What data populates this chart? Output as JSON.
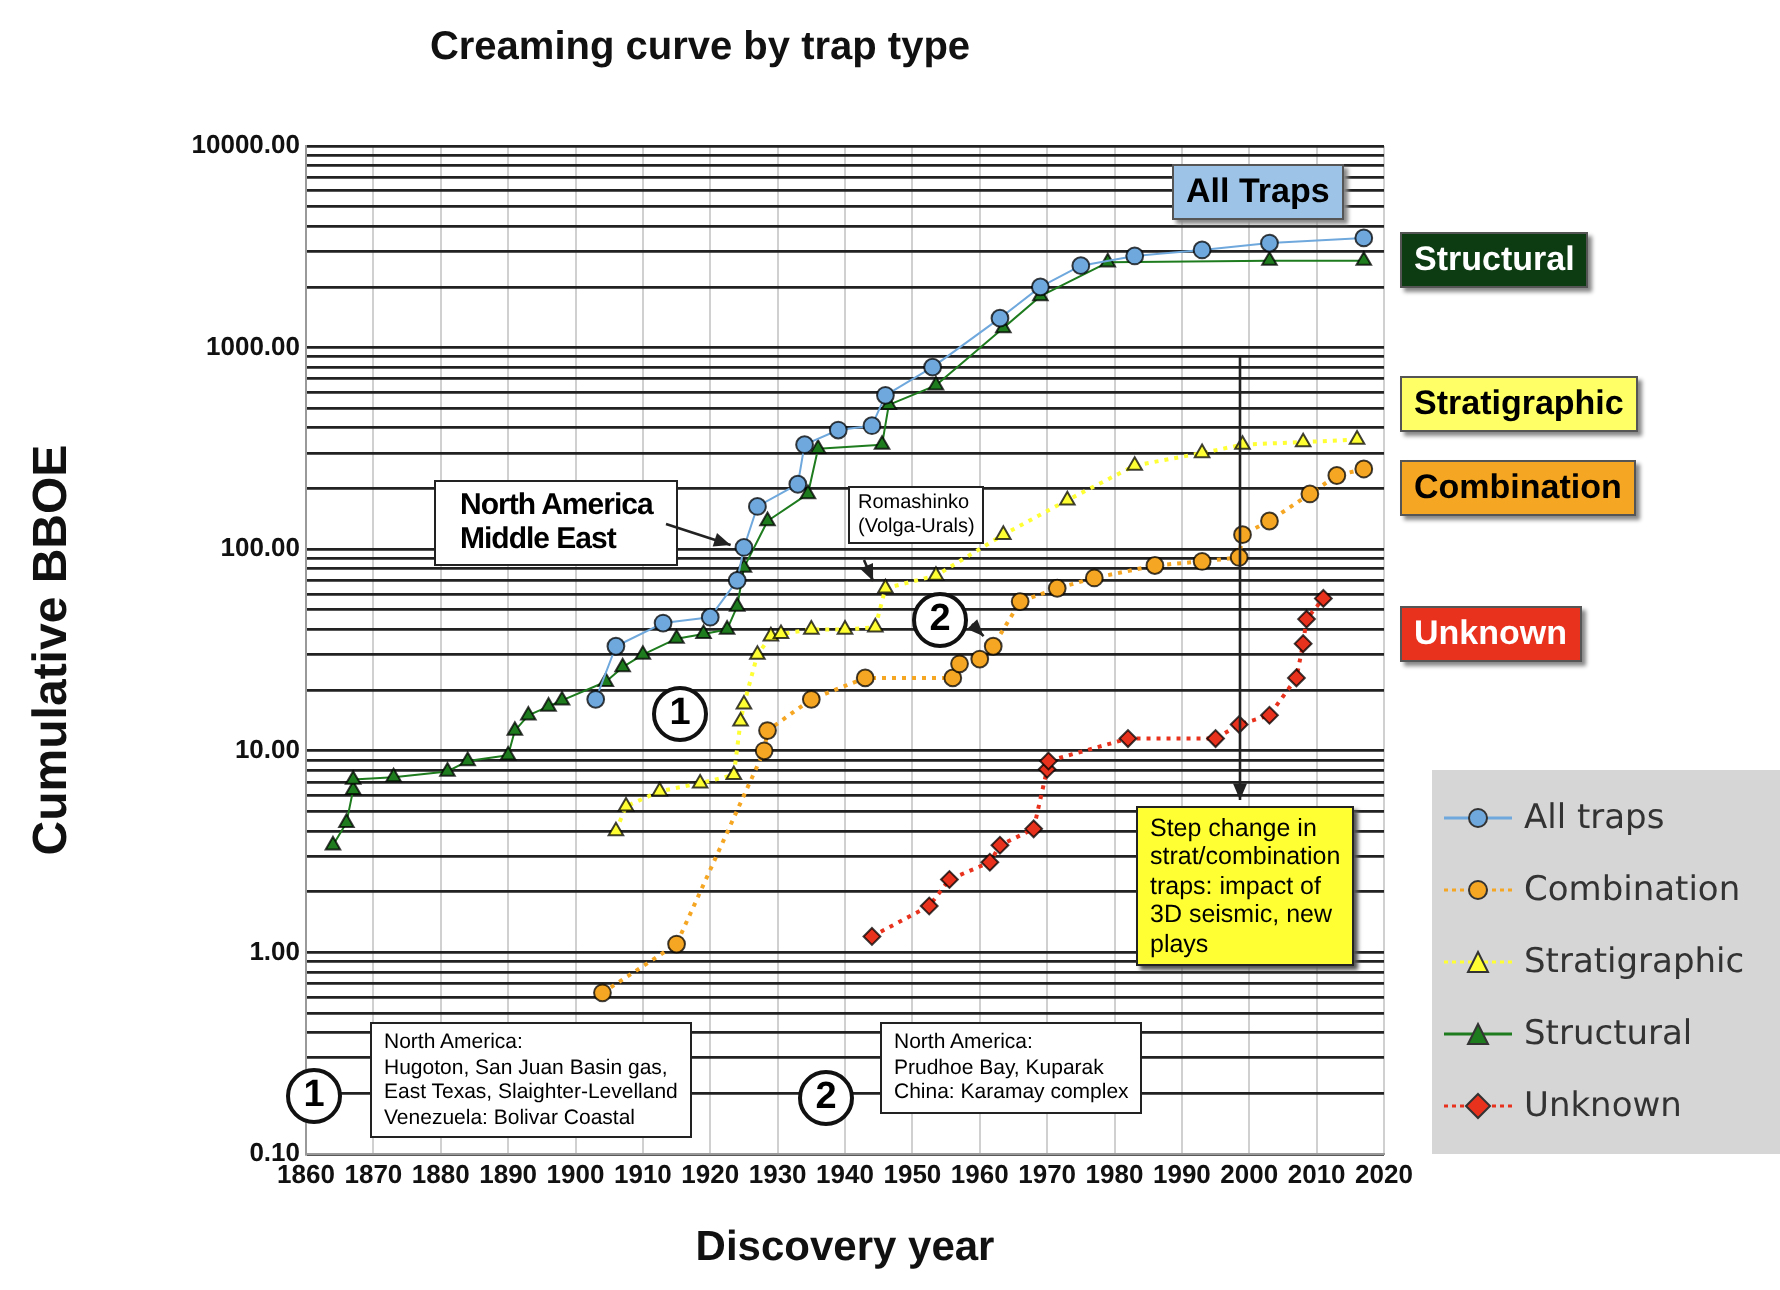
{
  "chart_data": {
    "type": "line",
    "title": "Creaming curve by trap type",
    "xlabel": "Discovery year",
    "ylabel": "Cumulative BBOE",
    "log": "y",
    "grid": true,
    "legend": "bottom right",
    "xlim": [
      1860,
      2020
    ],
    "xticks": [
      1860,
      1870,
      1880,
      1890,
      1900,
      1910,
      1920,
      1930,
      1940,
      1950,
      1960,
      1970,
      1980,
      1990,
      2000,
      2010,
      2020
    ],
    "ylim": [
      0.1,
      10000
    ],
    "yticks": [
      {
        "value": 0.1,
        "label": "0.10"
      },
      {
        "value": 0.2,
        "label": null
      },
      {
        "value": 0.3,
        "label": null
      },
      {
        "value": 0.4,
        "label": null
      },
      {
        "value": 0.5,
        "label": null
      },
      {
        "value": 0.6,
        "label": null
      },
      {
        "value": 0.7,
        "label": null
      },
      {
        "value": 0.8,
        "label": null
      },
      {
        "value": 0.9,
        "label": null
      },
      {
        "value": 1,
        "label": "1.00"
      },
      {
        "value": 2,
        "label": null
      },
      {
        "value": 3,
        "label": null
      },
      {
        "value": 4,
        "label": null
      },
      {
        "value": 5,
        "label": null
      },
      {
        "value": 6,
        "label": null
      },
      {
        "value": 7,
        "label": null
      },
      {
        "value": 8,
        "label": null
      },
      {
        "value": 9,
        "label": null
      },
      {
        "value": 10,
        "label": "10.00"
      },
      {
        "value": 20,
        "label": null
      },
      {
        "value": 30,
        "label": null
      },
      {
        "value": 40,
        "label": null
      },
      {
        "value": 50,
        "label": null
      },
      {
        "value": 60,
        "label": null
      },
      {
        "value": 70,
        "label": null
      },
      {
        "value": 80,
        "label": null
      },
      {
        "value": 90,
        "label": null
      },
      {
        "value": 100,
        "label": "100.00"
      },
      {
        "value": 200,
        "label": null
      },
      {
        "value": 300,
        "label": null
      },
      {
        "value": 400,
        "label": null
      },
      {
        "value": 500,
        "label": null
      },
      {
        "value": 600,
        "label": null
      },
      {
        "value": 700,
        "label": null
      },
      {
        "value": 800,
        "label": null
      },
      {
        "value": 900,
        "label": null
      },
      {
        "value": 1000,
        "label": "1000.00"
      },
      {
        "value": 2000,
        "label": null
      },
      {
        "value": 3000,
        "label": null
      },
      {
        "value": 4000,
        "label": null
      },
      {
        "value": 5000,
        "label": null
      },
      {
        "value": 6000,
        "label": null
      },
      {
        "value": 7000,
        "label": null
      },
      {
        "value": 8000,
        "label": null
      },
      {
        "value": 9000,
        "label": null
      },
      {
        "value": 10000,
        "label": "10000.00"
      }
    ],
    "series": [
      {
        "name": "All traps",
        "color": "#6fa8dc",
        "marker": "circle",
        "line_style": "solid",
        "x": [
          1903,
          1906,
          1913,
          1920,
          1924,
          1925,
          1927,
          1933,
          1934,
          1939,
          1944,
          1946,
          1953,
          1963,
          1969,
          1975,
          1983,
          1993,
          2003,
          2017
        ],
        "values": [
          18,
          33,
          43,
          46,
          70,
          102,
          163,
          210,
          330,
          390,
          410,
          580,
          800,
          1400,
          2000,
          2550,
          2850,
          3050,
          3300,
          3500
        ]
      },
      {
        "name": "Combination",
        "color": "#f5a623",
        "marker": "circle",
        "line_style": "dotted",
        "x": [
          1904,
          1915,
          1928,
          1928.5,
          1935,
          1943,
          1956,
          1957,
          1960,
          1962,
          1966,
          1971.5,
          1977,
          1986,
          1993,
          1998.5,
          1999,
          2003,
          2009,
          2013,
          2017
        ],
        "values": [
          0.63,
          1.1,
          10,
          12.6,
          18,
          23,
          23,
          27,
          28.5,
          33,
          55,
          64,
          72,
          83,
          87,
          91,
          118,
          138,
          188,
          232,
          250
        ]
      },
      {
        "name": "Stratigraphic",
        "color": "#ffff33",
        "marker": "triangle",
        "line_style": "dotted",
        "x": [
          1906,
          1907.5,
          1912.5,
          1918.5,
          1923.5,
          1924.5,
          1925,
          1927,
          1929,
          1930.5,
          1935,
          1940,
          1944.5,
          1946,
          1953.5,
          1963.5,
          1973,
          1983,
          1993,
          1999,
          2008,
          2016
        ],
        "values": [
          4,
          5.3,
          6.3,
          6.9,
          7.6,
          14,
          17,
          30,
          37,
          38,
          40,
          40,
          41,
          64,
          74,
          118,
          175,
          260,
          300,
          330,
          340,
          350
        ]
      },
      {
        "name": "Structural",
        "color": "#1e7b1e",
        "marker": "triangle",
        "line_style": "solid",
        "x": [
          1864,
          1866,
          1867,
          1867,
          1873,
          1881,
          1884,
          1890,
          1891,
          1893,
          1896,
          1898,
          1904.5,
          1907,
          1910,
          1915,
          1919,
          1922.5,
          1924,
          1925,
          1928.5,
          1934.5,
          1936,
          1945.5,
          1946.5,
          1953.5,
          1963.5,
          1969,
          1979,
          2003,
          2017
        ],
        "values": [
          3.4,
          4.4,
          6.4,
          7.2,
          7.4,
          7.9,
          8.9,
          9.5,
          12.6,
          15,
          16.6,
          17.8,
          22,
          26,
          30,
          36,
          38,
          40,
          52,
          81,
          138,
          188,
          315,
          330,
          520,
          650,
          1250,
          1800,
          2650,
          2700,
          2700
        ]
      },
      {
        "name": "Unknown",
        "color": "#e8321e",
        "marker": "diamond",
        "line_style": "dotted",
        "x": [
          1944,
          1952.5,
          1955.5,
          1961.5,
          1963,
          1968,
          1970,
          1970.2,
          1982,
          1995,
          1998.5,
          2003,
          2007,
          2008,
          2008.5,
          2011
        ],
        "values": [
          1.2,
          1.7,
          2.3,
          2.8,
          3.4,
          4.1,
          8.1,
          8.9,
          11.5,
          11.5,
          13.5,
          15,
          23,
          34,
          45,
          57
        ]
      }
    ],
    "annotations": [
      "All Traps",
      "Structural",
      "Stratigraphic",
      "Combination",
      "Unknown",
      {
        "text": "North America\nMiddle East",
        "x": 1925,
        "y": 100
      },
      {
        "text": "Romashinko\n(Volga-Urals)",
        "x": 1945,
        "y": 60
      },
      "1",
      {
        "text": "2",
        "x": 1962,
        "y": 33
      },
      "Step change in\nstrat/combination\ntraps: impact of\n3D seismic, new\nplays",
      "1",
      "North America:\nHugoton, San Juan Basin gas,\nEast Texas, Slaighter-Levelland\nVenezuela: Bolivar Coastal",
      "2",
      "North America:\nPrudhoe Bay, Kuparak\nChina: Karamay complex"
    ]
  }
}
